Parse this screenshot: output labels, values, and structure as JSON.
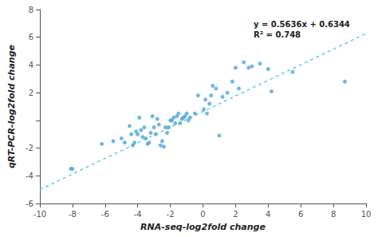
{
  "chart_data": {
    "type": "scatter",
    "xlabel": "RNA-seq-log2fold change",
    "ylabel": "qRT-PCR-log2fold change",
    "xlim": [
      -10,
      10
    ],
    "ylim": [
      -6,
      8
    ],
    "xticks": [
      -10,
      -8,
      -6,
      -4,
      -2,
      0,
      2,
      4,
      6,
      8,
      10
    ],
    "yticks": [
      -6,
      -4,
      -2,
      {
        "value": 0,
        "label": ""
      },
      2,
      4,
      6,
      8
    ],
    "grid": false,
    "annotations": [
      "y = 0.5636x + 0.6344",
      "R² = 0.748"
    ],
    "series": [
      {
        "type": "line",
        "line_style": "dashed",
        "color": "#66ccdd",
        "x": [
          -10,
          10
        ],
        "values": [
          -5.0016,
          6.2704
        ]
      },
      {
        "type": "scatter",
        "marker": "circle",
        "color": "#4da6d9",
        "x": [
          -8.1,
          -8.0,
          -6.2,
          -5.5,
          -5.0,
          -4.8,
          -4.5,
          -4.4,
          -4.3,
          -4.2,
          -4.1,
          -4.0,
          -3.9,
          -3.8,
          -3.7,
          -3.6,
          -3.5,
          -3.4,
          -3.3,
          -3.2,
          -3.1,
          -3.0,
          -2.9,
          -2.8,
          -2.7,
          -2.6,
          -2.5,
          -2.4,
          -2.3,
          -2.2,
          -2.1,
          -2.0,
          -1.9,
          -1.8,
          -1.7,
          -1.6,
          -1.5,
          -1.4,
          -1.3,
          -1.2,
          -1.1,
          -1.0,
          -0.9,
          -0.8,
          -0.5,
          -0.3,
          0.05,
          0.15,
          0.25,
          0.4,
          0.5,
          0.6,
          0.8,
          1.0,
          1.2,
          1.5,
          1.8,
          2.0,
          2.2,
          2.5,
          2.8,
          3.0,
          3.5,
          4.0,
          4.2,
          5.5,
          8.7
        ],
        "values": [
          -3.5,
          -3.5,
          -1.7,
          -1.5,
          -1.3,
          -1.6,
          -0.4,
          -1.0,
          -1.8,
          -1.6,
          -0.8,
          -1.0,
          0.2,
          -0.7,
          -1.2,
          -0.5,
          -1.3,
          -1.7,
          -1.6,
          -0.9,
          0.3,
          -0.5,
          -1.0,
          0.1,
          -0.3,
          -1.8,
          -1.5,
          -1.9,
          -0.5,
          -0.9,
          -0.5,
          0.0,
          0.0,
          0.2,
          -0.2,
          0.3,
          0.5,
          -0.2,
          0.1,
          0.2,
          0.3,
          0.5,
          0.0,
          0.2,
          0.5,
          1.8,
          0.8,
          1.5,
          0.5,
          1.2,
          1.8,
          2.5,
          2.3,
          -1.1,
          1.7,
          2.0,
          2.8,
          3.8,
          2.3,
          4.2,
          3.8,
          3.9,
          4.1,
          3.7,
          2.1,
          3.5,
          2.8
        ]
      }
    ]
  }
}
